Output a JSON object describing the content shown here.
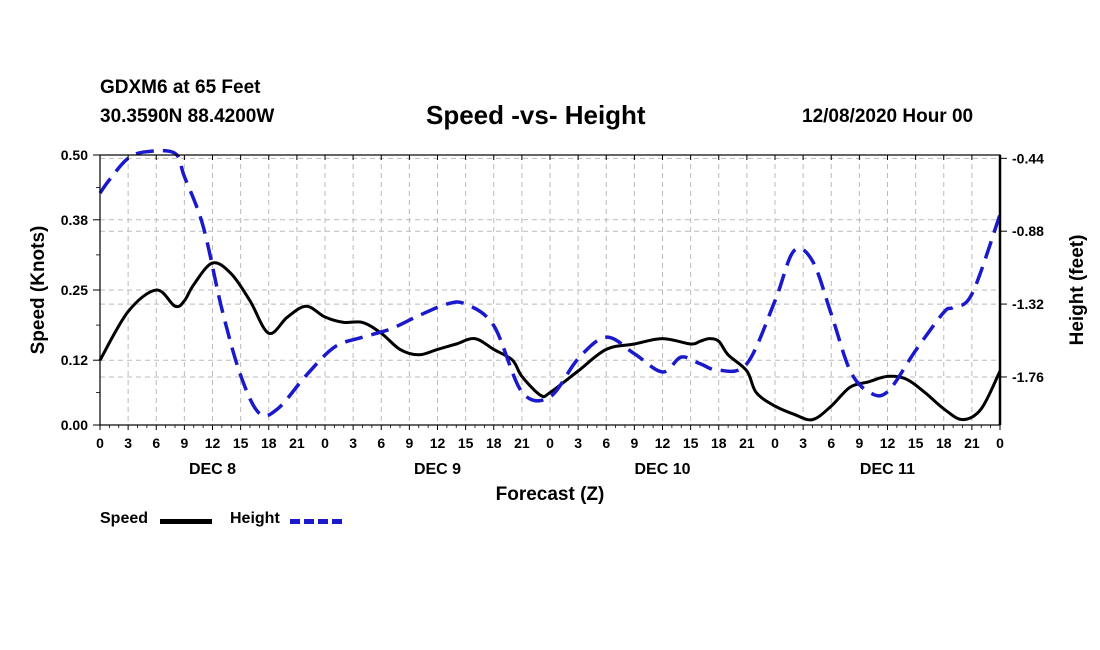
{
  "header": {
    "station": "GDXM6 at 65 Feet",
    "coords": "30.3590N 88.4200W",
    "title": "Speed -vs- Height",
    "datetime": "12/08/2020 Hour 00"
  },
  "legend": {
    "speed_label": "Speed",
    "height_label": "Height"
  },
  "colors": {
    "speed": "#000000",
    "height": "#1a1acc",
    "grid": "#bbbbbb"
  },
  "chart_data": {
    "type": "line",
    "title": "Speed -vs- Height",
    "xlabel": "Forecast (Z)",
    "ylabel": "Speed (Knots)",
    "y2label": "Height (feet)",
    "xlim": [
      0,
      96
    ],
    "ylim": [
      0.0,
      0.5
    ],
    "y2lim": [
      -2.05,
      -0.42
    ],
    "yticks": [
      0.0,
      0.12,
      0.25,
      0.38,
      0.5
    ],
    "ytick_labels": [
      "0.00",
      "0.12",
      "0.25",
      "0.38",
      "0.50"
    ],
    "y2ticks": [
      -0.44,
      -0.88,
      -1.32,
      -1.76
    ],
    "y2tick_labels": [
      "-0.44",
      "-0.88",
      "-1.32",
      "-1.76"
    ],
    "xticks": [
      0,
      3,
      6,
      9,
      12,
      15,
      18,
      21,
      24,
      27,
      30,
      33,
      36,
      39,
      42,
      45,
      48,
      51,
      54,
      57,
      60,
      63,
      66,
      69,
      72,
      75,
      78,
      81,
      84,
      87,
      90,
      93,
      96
    ],
    "xtick_labels": [
      "0",
      "3",
      "6",
      "9",
      "12",
      "15",
      "18",
      "21",
      "0",
      "3",
      "6",
      "9",
      "12",
      "15",
      "18",
      "21",
      "0",
      "3",
      "6",
      "9",
      "12",
      "15",
      "18",
      "21",
      "0",
      "3",
      "6",
      "9",
      "12",
      "15",
      "18",
      "21",
      "0"
    ],
    "day_labels": [
      {
        "x": 12,
        "label": "DEC 8"
      },
      {
        "x": 36,
        "label": "DEC 9"
      },
      {
        "x": 60,
        "label": "DEC 10"
      },
      {
        "x": 84,
        "label": "DEC 11"
      }
    ],
    "grid": true,
    "series": [
      {
        "name": "Speed",
        "axis": "left",
        "style": "solid",
        "x": [
          0,
          3,
          6,
          8,
          9,
          10,
          12,
          14,
          16,
          18,
          20,
          22,
          24,
          26,
          28,
          30,
          32,
          34,
          36,
          38,
          40,
          42,
          44,
          45,
          47,
          48,
          51,
          54,
          57,
          60,
          63,
          64,
          65,
          66,
          67,
          69,
          70,
          72,
          74,
          76,
          78,
          80,
          82,
          84,
          86,
          88,
          90,
          92,
          94,
          96
        ],
        "y": [
          0.12,
          0.21,
          0.25,
          0.22,
          0.23,
          0.26,
          0.3,
          0.28,
          0.23,
          0.17,
          0.2,
          0.22,
          0.2,
          0.19,
          0.19,
          0.17,
          0.14,
          0.13,
          0.14,
          0.15,
          0.16,
          0.14,
          0.12,
          0.09,
          0.055,
          0.06,
          0.1,
          0.14,
          0.15,
          0.16,
          0.15,
          0.155,
          0.16,
          0.155,
          0.13,
          0.1,
          0.06,
          0.035,
          0.02,
          0.01,
          0.035,
          0.07,
          0.08,
          0.09,
          0.085,
          0.06,
          0.03,
          0.01,
          0.03,
          0.1
        ]
      },
      {
        "name": "Height",
        "axis": "right",
        "style": "dashed",
        "x": [
          0,
          1,
          3,
          5,
          8,
          9,
          11,
          13,
          15,
          17,
          19,
          22,
          25,
          28,
          31,
          34,
          37,
          39,
          42,
          45,
          48,
          51,
          54,
          57,
          60,
          62,
          64,
          66,
          69,
          72,
          74,
          76,
          78,
          80,
          82,
          84,
          87,
          90,
          91,
          93,
          96
        ],
        "y": [
          -0.65,
          -0.57,
          -0.44,
          -0.4,
          -0.41,
          -0.55,
          -0.85,
          -1.35,
          -1.75,
          -1.98,
          -1.95,
          -1.75,
          -1.58,
          -1.52,
          -1.47,
          -1.39,
          -1.32,
          -1.32,
          -1.45,
          -1.85,
          -1.88,
          -1.65,
          -1.52,
          -1.62,
          -1.73,
          -1.64,
          -1.68,
          -1.72,
          -1.68,
          -1.3,
          -1.0,
          -1.06,
          -1.38,
          -1.72,
          -1.85,
          -1.85,
          -1.6,
          -1.37,
          -1.34,
          -1.26,
          -0.78
        ]
      }
    ]
  }
}
